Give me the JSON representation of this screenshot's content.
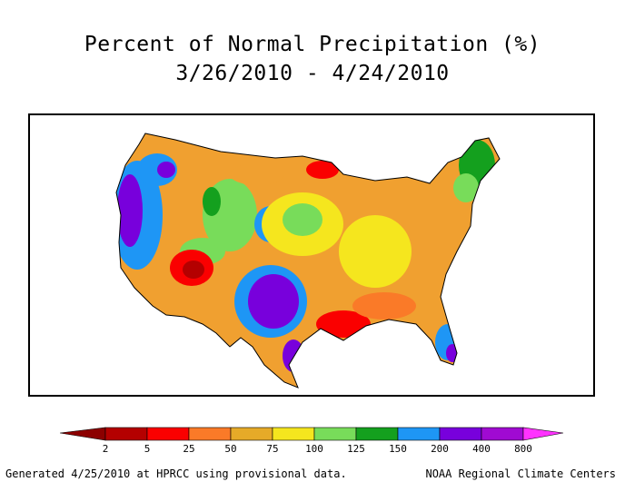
{
  "header": {
    "title": "Percent of Normal Precipitation (%)",
    "period": "3/26/2010 - 4/24/2010"
  },
  "legend": {
    "bins": [
      {
        "color": "#b40000"
      },
      {
        "color": "#fa0000"
      },
      {
        "color": "#fa7a28"
      },
      {
        "color": "#e6aa28"
      },
      {
        "color": "#f5e61e"
      },
      {
        "color": "#78dc5a"
      },
      {
        "color": "#14a01e"
      },
      {
        "color": "#1e96f5"
      },
      {
        "color": "#7800dc"
      },
      {
        "color": "#a00ad2"
      }
    ],
    "low_cap_color": "#8c0000",
    "high_cap_color": "#ff32ff",
    "labels": [
      "2",
      "5",
      "25",
      "50",
      "75",
      "100",
      "125",
      "150",
      "200",
      "400",
      "800"
    ]
  },
  "footer": {
    "left": "Generated 4/25/2010 at HPRCC using provisional data.",
    "right": "NOAA Regional Climate Centers"
  }
}
